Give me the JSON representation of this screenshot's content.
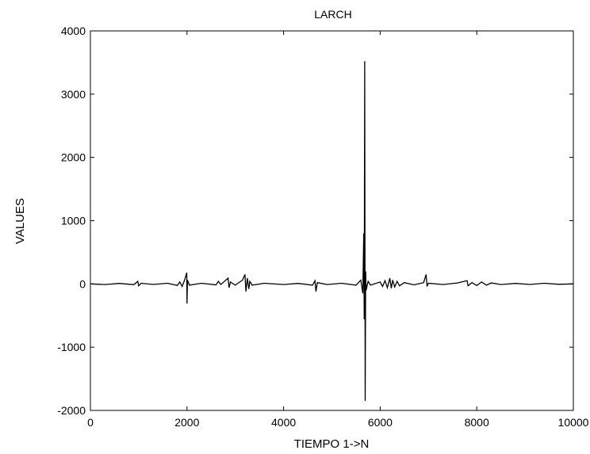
{
  "chart_data": {
    "type": "line",
    "title": "LARCH",
    "xlabel": "TIEMPO 1->N",
    "ylabel": "VALUES",
    "xlim": [
      0,
      10000
    ],
    "ylim": [
      -2000,
      4000
    ],
    "xticks": [
      0,
      2000,
      4000,
      6000,
      8000,
      10000
    ],
    "yticks": [
      -2000,
      -1000,
      0,
      1000,
      2000,
      3000,
      4000
    ],
    "grid": false,
    "line_color": "#000000",
    "series": [
      {
        "values": [
          [
            0,
            0
          ],
          [
            300,
            -10
          ],
          [
            600,
            8
          ],
          [
            900,
            -12
          ],
          [
            980,
            40
          ],
          [
            1000,
            -30
          ],
          [
            1050,
            10
          ],
          [
            1300,
            -8
          ],
          [
            1600,
            10
          ],
          [
            1800,
            -25
          ],
          [
            1850,
            30
          ],
          [
            1900,
            -40
          ],
          [
            1950,
            60
          ],
          [
            1995,
            180
          ],
          [
            2000,
            -310
          ],
          [
            2010,
            60
          ],
          [
            2050,
            -20
          ],
          [
            2300,
            10
          ],
          [
            2600,
            -15
          ],
          [
            2650,
            40
          ],
          [
            2700,
            -10
          ],
          [
            2850,
            90
          ],
          [
            2870,
            -60
          ],
          [
            2900,
            30
          ],
          [
            3000,
            -20
          ],
          [
            3150,
            60
          ],
          [
            3200,
            150
          ],
          [
            3220,
            -120
          ],
          [
            3250,
            90
          ],
          [
            3280,
            -80
          ],
          [
            3300,
            40
          ],
          [
            3350,
            -20
          ],
          [
            3600,
            10
          ],
          [
            4000,
            -10
          ],
          [
            4300,
            8
          ],
          [
            4600,
            -20
          ],
          [
            4650,
            50
          ],
          [
            4670,
            -120
          ],
          [
            4700,
            20
          ],
          [
            4900,
            -10
          ],
          [
            5200,
            10
          ],
          [
            5500,
            -20
          ],
          [
            5600,
            60
          ],
          [
            5640,
            -150
          ],
          [
            5660,
            800
          ],
          [
            5670,
            -560
          ],
          [
            5680,
            3520
          ],
          [
            5690,
            -1850
          ],
          [
            5700,
            200
          ],
          [
            5710,
            -100
          ],
          [
            5750,
            40
          ],
          [
            5800,
            -20
          ],
          [
            6000,
            30
          ],
          [
            6050,
            -40
          ],
          [
            6100,
            50
          ],
          [
            6150,
            -60
          ],
          [
            6200,
            90
          ],
          [
            6230,
            -70
          ],
          [
            6260,
            60
          ],
          [
            6300,
            -50
          ],
          [
            6350,
            40
          ],
          [
            6400,
            -30
          ],
          [
            6500,
            20
          ],
          [
            6700,
            -15
          ],
          [
            6900,
            20
          ],
          [
            6950,
            150
          ],
          [
            6970,
            -40
          ],
          [
            7000,
            10
          ],
          [
            7300,
            -10
          ],
          [
            7600,
            15
          ],
          [
            7800,
            50
          ],
          [
            7820,
            -30
          ],
          [
            7900,
            20
          ],
          [
            8000,
            -25
          ],
          [
            8100,
            30
          ],
          [
            8200,
            -20
          ],
          [
            8300,
            15
          ],
          [
            8500,
            -10
          ],
          [
            8800,
            8
          ],
          [
            9100,
            -8
          ],
          [
            9400,
            10
          ],
          [
            9700,
            -6
          ],
          [
            10000,
            0
          ]
        ]
      }
    ]
  }
}
